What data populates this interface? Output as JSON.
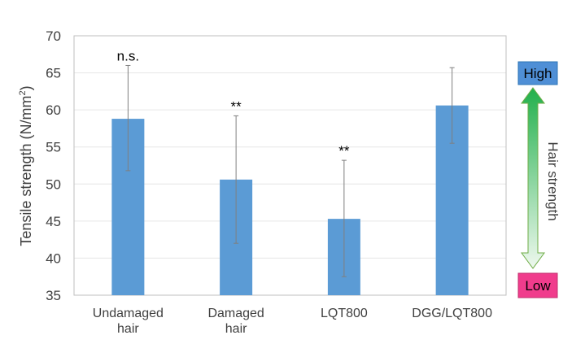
{
  "chart_data": {
    "type": "bar",
    "categories": [
      {
        "line1": "Undamaged",
        "line2": "hair"
      },
      {
        "line1": "Damaged",
        "line2": "hair"
      },
      {
        "line1": "LQT800",
        "line2": ""
      },
      {
        "line1": "DGG/LQT800",
        "line2": ""
      }
    ],
    "values": [
      58.8,
      50.6,
      45.3,
      60.6
    ],
    "error_low": [
      51.8,
      42.0,
      37.5,
      55.5
    ],
    "error_high": [
      66.0,
      59.2,
      53.2,
      65.7
    ],
    "annotations": [
      "n.s.",
      "**",
      "**",
      ""
    ],
    "ylabel": {
      "text": "Tensile strength (N/mm",
      "sup": "2",
      "close": ")"
    },
    "ylim": [
      35,
      70
    ],
    "yticks": [
      35,
      40,
      45,
      50,
      55,
      60,
      65,
      70
    ],
    "grid": true,
    "bar_color": "#5b9bd5"
  },
  "indicator": {
    "high_label": "High",
    "low_label": "Low",
    "axis_label": "Hair strength",
    "high_color": "#4f8fd6",
    "low_color": "#f03c8c",
    "arrow_top_color": "#22b04c",
    "arrow_bottom_color": "#eef8ee"
  }
}
